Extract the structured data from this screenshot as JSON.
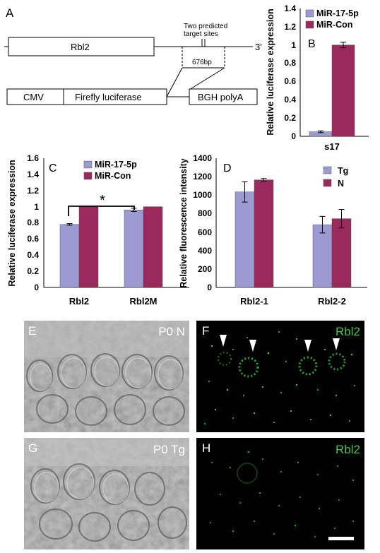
{
  "panels": {
    "A": {
      "letter": "A",
      "gene_label": "Rbl2",
      "end_label": "3'",
      "sites_line1": "Two predicted",
      "sites_line2": "target sites",
      "fragment_size": "676bp",
      "promoter": "CMV",
      "reporter": "Firefly luciferase",
      "polya": "BGH polyA"
    },
    "E": {
      "letter": "E",
      "caption": "P0 N"
    },
    "F": {
      "letter": "F",
      "caption": "Rbl2"
    },
    "G": {
      "letter": "G",
      "caption": "P0 Tg"
    },
    "H": {
      "letter": "H",
      "caption": "Rbl2"
    }
  },
  "colors": {
    "series_a": "#9b9bd2",
    "series_b": "#9b2a5c",
    "fluor_green": "#3fd23f",
    "label_green": "#47c447"
  },
  "chart_data": [
    {
      "panel": "B",
      "type": "bar",
      "categories": [
        "s17"
      ],
      "series": [
        {
          "name": "MiR-17-5p",
          "values": [
            0.05
          ],
          "errors": [
            0.01
          ]
        },
        {
          "name": "MiR-Con",
          "values": [
            1.0
          ],
          "errors": [
            0.03
          ]
        }
      ],
      "ylabel": "Relative luciferase expression",
      "ylim": [
        0,
        1.4
      ],
      "yticks": [
        "0",
        "0.2",
        "0.4",
        "0.6",
        "0.8",
        "1",
        "1.2",
        "1.4"
      ],
      "legend": "top-left"
    },
    {
      "panel": "C",
      "type": "bar",
      "categories": [
        "Rbl2",
        "Rbl2M"
      ],
      "series": [
        {
          "name": "MiR-17-5p",
          "values": [
            0.78,
            0.96
          ],
          "errors": [
            0.01,
            0.02
          ]
        },
        {
          "name": "MiR-Con",
          "values": [
            1.0,
            1.0
          ],
          "errors": [
            0,
            0
          ]
        }
      ],
      "ylabel": "Relative luciferase expression",
      "ylim": [
        0,
        1.6
      ],
      "yticks": [
        "0",
        "0.2",
        "0.4",
        "0.6",
        "0.8",
        "1",
        "1.2",
        "1.4",
        "1.6"
      ],
      "annotation": "*",
      "legend": "top"
    },
    {
      "panel": "D",
      "type": "bar",
      "categories": [
        "Rbl2-1",
        "Rbl2-2"
      ],
      "series": [
        {
          "name": "Tg",
          "values": [
            1035,
            680
          ],
          "errors": [
            110,
            90
          ]
        },
        {
          "name": "N",
          "values": [
            1165,
            745
          ],
          "errors": [
            15,
            100
          ]
        }
      ],
      "ylabel": "Relative fluorescence intensity",
      "ylim": [
        0,
        1400
      ],
      "yticks": [
        "0",
        "200",
        "400",
        "600",
        "800",
        "1000",
        "1200",
        "1400"
      ],
      "legend": "top-right"
    }
  ]
}
